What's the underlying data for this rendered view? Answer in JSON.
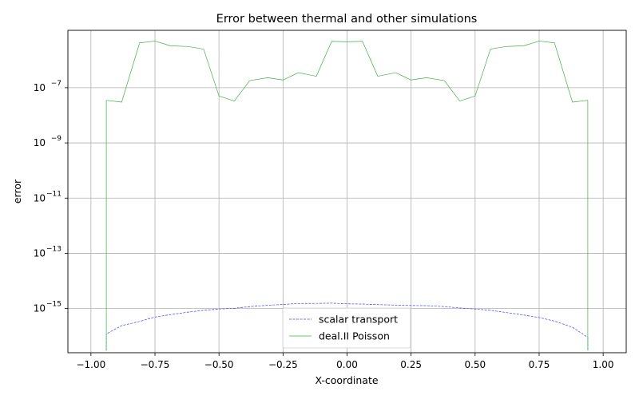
{
  "chart_data": {
    "type": "line",
    "title": "Error between thermal and other simulations",
    "xlabel": "X-coordinate",
    "ylabel": "error",
    "xlim": [
      -1.09,
      1.09
    ],
    "ylim": [
      2.5e-17,
      1.2e-05
    ],
    "yscale": "log",
    "grid": true,
    "legend_position": "lower-center",
    "x_ticks": [
      {
        "value": -1.0,
        "label": "−1.00"
      },
      {
        "value": -0.75,
        "label": "−0.75"
      },
      {
        "value": -0.5,
        "label": "−0.50"
      },
      {
        "value": -0.25,
        "label": "−0.25"
      },
      {
        "value": 0.0,
        "label": "0.00"
      },
      {
        "value": 0.25,
        "label": "0.25"
      },
      {
        "value": 0.5,
        "label": "0.50"
      },
      {
        "value": 0.75,
        "label": "0.75"
      },
      {
        "value": 1.0,
        "label": "1.00"
      }
    ],
    "y_ticks": [
      {
        "value": 1e-15,
        "base": "10",
        "exp": "−15"
      },
      {
        "value": 1e-13,
        "base": "10",
        "exp": "−13"
      },
      {
        "value": 1e-11,
        "base": "10",
        "exp": "−11"
      },
      {
        "value": 1e-09,
        "base": "10",
        "exp": "−9"
      },
      {
        "value": 1e-07,
        "base": "10",
        "exp": "−7"
      }
    ],
    "series": [
      {
        "name": "scalar transport",
        "color": "#4040ff",
        "style": "dashed",
        "x": [
          -0.94,
          -0.94,
          -0.88,
          -0.81,
          -0.75,
          -0.69,
          -0.62,
          -0.56,
          -0.5,
          -0.44,
          -0.38,
          -0.31,
          -0.25,
          -0.19,
          -0.12,
          -0.06,
          0.0,
          0.06,
          0.12,
          0.19,
          0.25,
          0.31,
          0.38,
          0.44,
          0.5,
          0.56,
          0.62,
          0.69,
          0.75,
          0.81,
          0.88,
          0.94,
          0.94
        ],
        "y": [
          3e-17,
          1.2e-16,
          2.4e-16,
          3.4e-16,
          4.9e-16,
          6e-16,
          7.4e-16,
          8.6e-16,
          9.6e-16,
          1.02e-15,
          1.17e-15,
          1.31e-15,
          1.4e-15,
          1.52e-15,
          1.53e-15,
          1.56e-15,
          1.48e-15,
          1.45e-15,
          1.38e-15,
          1.33e-15,
          1.28e-15,
          1.27e-15,
          1.17e-15,
          1.05e-15,
          9.6e-16,
          8.6e-16,
          7.2e-16,
          5.8e-16,
          4.7e-16,
          3.5e-16,
          2.1e-16,
          9e-17,
          3e-17
        ]
      },
      {
        "name": "deal.II Poisson",
        "color": "#3cb043",
        "style": "solid",
        "x": [
          -0.94,
          -0.94,
          -0.88,
          -0.81,
          -0.75,
          -0.69,
          -0.62,
          -0.56,
          -0.5,
          -0.44,
          -0.38,
          -0.31,
          -0.25,
          -0.19,
          -0.12,
          -0.06,
          0.0,
          0.06,
          0.12,
          0.19,
          0.25,
          0.31,
          0.38,
          0.44,
          0.5,
          0.56,
          0.62,
          0.69,
          0.75,
          0.81,
          0.88,
          0.94,
          0.94
        ],
        "y": [
          3e-17,
          3.5e-08,
          3e-08,
          4.2e-06,
          4.9e-06,
          3.3e-06,
          3.1e-06,
          2.5e-06,
          5e-08,
          3.3e-08,
          1.8e-07,
          2.3e-07,
          1.9e-07,
          3.5e-07,
          2.6e-07,
          4.8e-06,
          4.6e-06,
          4.8e-06,
          2.6e-07,
          3.5e-07,
          1.9e-07,
          2.3e-07,
          1.8e-07,
          3.3e-08,
          5e-08,
          2.5e-06,
          3.1e-06,
          3.3e-06,
          4.9e-06,
          4.2e-06,
          3e-08,
          3.5e-08,
          3e-17
        ]
      }
    ]
  }
}
